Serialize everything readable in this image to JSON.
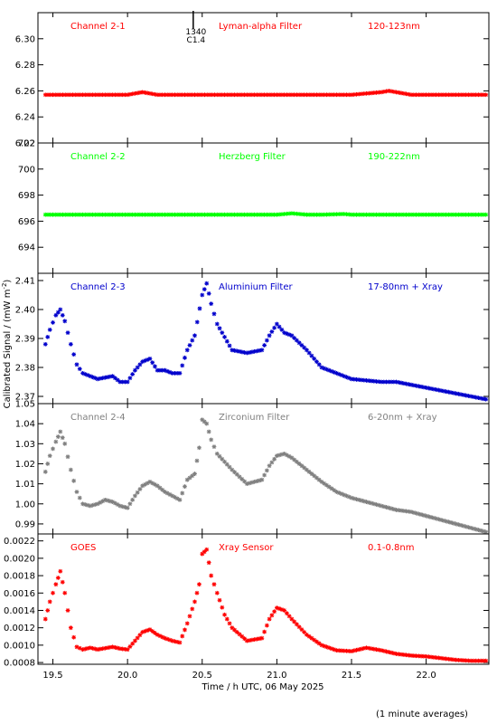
{
  "figure": {
    "ylabel": "Calibrated Signal / (mW m",
    "ylabel_sup": "-2",
    "ylabel_end": ")",
    "xlabel": "Time / h UTC, 06 May 2025",
    "footnote": "(1 minute averages)"
  },
  "chart_data": [
    {
      "type": "scatter",
      "channel": "Channel 2-1",
      "filter": "Lyman-alpha Filter",
      "band": "120-123nm",
      "color": "#ff0000",
      "ylim": [
        6.22,
        6.32
      ],
      "yticks": [
        "6.22",
        "6.24",
        "6.26",
        "6.28",
        "6.30"
      ],
      "marker_annotation": {
        "x": 20.44,
        "labels": [
          "1340",
          "C1.4"
        ]
      },
      "series": [
        {
          "x": [
            19.45,
            19.6,
            19.8,
            20.0,
            20.05,
            20.1,
            20.15,
            20.2,
            20.3,
            20.5,
            20.7,
            21.0,
            21.3,
            21.5,
            21.6,
            21.7,
            21.75,
            21.8,
            21.9,
            22.1,
            22.4
          ],
          "y": [
            6.257,
            6.257,
            6.257,
            6.257,
            6.258,
            6.259,
            6.258,
            6.257,
            6.257,
            6.257,
            6.257,
            6.257,
            6.257,
            6.257,
            6.258,
            6.259,
            6.26,
            6.259,
            6.257,
            6.257,
            6.257
          ]
        }
      ]
    },
    {
      "type": "scatter",
      "channel": "Channel 2-2",
      "filter": "Herzberg Filter",
      "band": "190-222nm",
      "color": "#00ff00",
      "ylim": [
        692,
        702
      ],
      "yticks": [
        "694",
        "696",
        "698",
        "700",
        "702"
      ],
      "series": [
        {
          "x": [
            19.45,
            19.8,
            20.0,
            20.5,
            21.0,
            21.1,
            21.2,
            21.3,
            21.45,
            21.5,
            22.0,
            22.4
          ],
          "y": [
            696.5,
            696.5,
            696.5,
            696.5,
            696.5,
            696.6,
            696.5,
            696.5,
            696.55,
            696.5,
            696.5,
            696.5
          ]
        }
      ]
    },
    {
      "type": "scatter",
      "channel": "Channel 2-3",
      "filter": "Aluminium Filter",
      "band": "17-80nm + Xray",
      "color": "#0000cc",
      "ylim": [
        2.3675,
        2.4125
      ],
      "yticks": [
        "2.37",
        "2.38",
        "2.39",
        "2.40",
        "2.41"
      ],
      "series": [
        {
          "x": [
            19.45,
            19.48,
            19.52,
            19.55,
            19.58,
            19.62,
            19.66,
            19.7,
            19.75,
            19.8,
            19.9,
            19.95,
            20.0,
            20.05,
            20.1,
            20.15,
            20.2,
            20.25,
            20.3,
            20.35,
            20.4,
            20.45,
            20.5,
            20.53,
            20.56,
            20.6,
            20.7,
            20.8,
            20.9,
            20.95,
            21.0,
            21.05,
            21.1,
            21.2,
            21.3,
            21.4,
            21.5,
            21.7,
            21.8,
            21.9,
            22.0,
            22.1,
            22.2,
            22.3,
            22.4
          ],
          "y": [
            2.388,
            2.393,
            2.398,
            2.4,
            2.396,
            2.388,
            2.381,
            2.378,
            2.377,
            2.376,
            2.377,
            2.375,
            2.375,
            2.379,
            2.382,
            2.383,
            2.379,
            2.379,
            2.378,
            2.378,
            2.386,
            2.391,
            2.405,
            2.409,
            2.402,
            2.395,
            2.386,
            2.385,
            2.386,
            2.391,
            2.395,
            2.392,
            2.391,
            2.386,
            2.38,
            2.378,
            2.376,
            2.375,
            2.375,
            2.374,
            2.373,
            2.372,
            2.371,
            2.37,
            2.369
          ]
        }
      ]
    },
    {
      "type": "scatter",
      "channel": "Channel 2-4",
      "filter": "Zirconium Filter",
      "band": "6-20nm + Xray",
      "color": "#808080",
      "ylim": [
        0.985,
        1.05
      ],
      "yticks": [
        "0.99",
        "1.00",
        "1.01",
        "1.02",
        "1.03",
        "1.04",
        "1.05"
      ],
      "series": [
        {
          "x": [
            19.45,
            19.48,
            19.52,
            19.55,
            19.58,
            19.62,
            19.66,
            19.7,
            19.75,
            19.8,
            19.85,
            19.9,
            19.95,
            20.0,
            20.05,
            20.1,
            20.15,
            20.2,
            20.25,
            20.3,
            20.35,
            20.4,
            20.45,
            20.48,
            20.5,
            20.53,
            20.56,
            20.6,
            20.65,
            20.7,
            20.8,
            20.9,
            20.95,
            21.0,
            21.05,
            21.1,
            21.2,
            21.3,
            21.4,
            21.5,
            21.6,
            21.7,
            21.8,
            21.9,
            22.0,
            22.1,
            22.2,
            22.3,
            22.4
          ],
          "y": [
            1.016,
            1.024,
            1.031,
            1.036,
            1.03,
            1.017,
            1.006,
            1.0,
            0.999,
            1.0,
            1.002,
            1.001,
            0.999,
            0.998,
            1.004,
            1.009,
            1.011,
            1.009,
            1.006,
            1.004,
            1.002,
            1.012,
            1.015,
            1.028,
            1.042,
            1.04,
            1.032,
            1.025,
            1.021,
            1.017,
            1.01,
            1.012,
            1.019,
            1.024,
            1.025,
            1.023,
            1.017,
            1.011,
            1.006,
            1.003,
            1.001,
            0.999,
            0.997,
            0.996,
            0.994,
            0.992,
            0.99,
            0.988,
            0.986
          ]
        }
      ]
    },
    {
      "type": "scatter",
      "channel": "GOES",
      "filter": "Xray Sensor",
      "band": "0.1-0.8nm",
      "color": "#ff0000",
      "ylim": [
        0.00078,
        0.00228
      ],
      "yticks": [
        "0.0008",
        "0.0010",
        "0.0012",
        "0.0014",
        "0.0016",
        "0.0018",
        "0.0020",
        "0.0022"
      ],
      "series": [
        {
          "x": [
            19.45,
            19.48,
            19.52,
            19.55,
            19.58,
            19.62,
            19.66,
            19.7,
            19.75,
            19.8,
            19.9,
            19.95,
            20.0,
            20.05,
            20.1,
            20.15,
            20.2,
            20.25,
            20.3,
            20.35,
            20.4,
            20.45,
            20.48,
            20.5,
            20.53,
            20.56,
            20.6,
            20.65,
            20.7,
            20.8,
            20.9,
            20.95,
            21.0,
            21.05,
            21.1,
            21.2,
            21.3,
            21.4,
            21.5,
            21.6,
            21.7,
            21.8,
            21.9,
            22.0,
            22.1,
            22.2,
            22.3,
            22.4
          ],
          "y": [
            0.0013,
            0.0015,
            0.0017,
            0.00185,
            0.0016,
            0.0012,
            0.00098,
            0.00095,
            0.00097,
            0.00095,
            0.00098,
            0.00096,
            0.00095,
            0.00105,
            0.00115,
            0.00118,
            0.00112,
            0.00108,
            0.00105,
            0.00103,
            0.00125,
            0.0015,
            0.0017,
            0.00205,
            0.0021,
            0.0018,
            0.0016,
            0.00135,
            0.0012,
            0.00105,
            0.00108,
            0.0013,
            0.00143,
            0.0014,
            0.0013,
            0.00112,
            0.001,
            0.00094,
            0.00093,
            0.00097,
            0.00094,
            0.0009,
            0.00088,
            0.00087,
            0.00085,
            0.00083,
            0.00082,
            0.00082
          ]
        }
      ]
    }
  ],
  "x_axis": {
    "xlim": [
      19.4,
      22.42
    ],
    "ticks": [
      "19.5",
      "20.0",
      "20.5",
      "21.0",
      "21.5",
      "22.0"
    ]
  }
}
